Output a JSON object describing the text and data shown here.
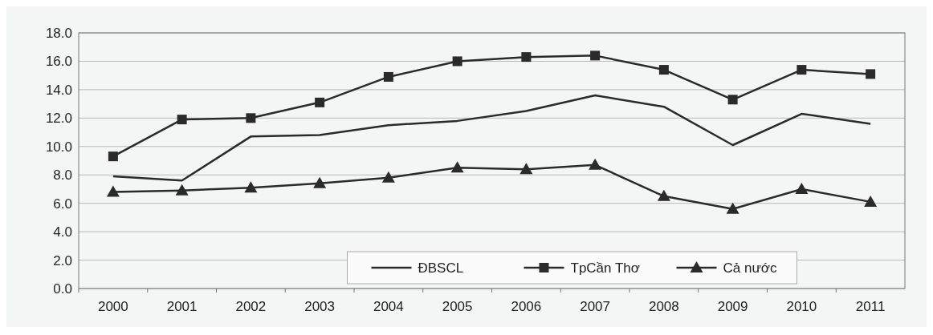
{
  "chart_data": {
    "type": "line",
    "categories": [
      "2000",
      "2001",
      "2002",
      "2003",
      "2004",
      "2005",
      "2006",
      "2007",
      "2008",
      "2009",
      "2010",
      "2011"
    ],
    "series": [
      {
        "name": "ĐBSCL",
        "color": "#2a2a2a",
        "marker": "none",
        "values": [
          7.9,
          7.6,
          10.7,
          10.8,
          11.5,
          11.8,
          12.5,
          13.6,
          12.8,
          10.1,
          12.3,
          11.6
        ]
      },
      {
        "name": "TpCần Thơ",
        "color": "#2a2a2a",
        "marker": "square",
        "values": [
          9.3,
          11.9,
          12.0,
          13.1,
          14.9,
          16.0,
          16.3,
          16.4,
          15.4,
          13.3,
          15.4,
          15.1
        ]
      },
      {
        "name": "Cả nước",
        "color": "#2a2a2a",
        "marker": "triangle",
        "values": [
          6.8,
          6.9,
          7.1,
          7.4,
          7.8,
          8.5,
          8.4,
          8.7,
          6.5,
          5.6,
          7.0,
          6.1
        ]
      }
    ],
    "ylim": [
      0,
      18
    ],
    "yticks": [
      {
        "value": 0,
        "label": "0.0"
      },
      {
        "value": 2,
        "label": "2.0"
      },
      {
        "value": 4,
        "label": "4.0"
      },
      {
        "value": 6,
        "label": "6.0"
      },
      {
        "value": 8,
        "label": "8.0"
      },
      {
        "value": 10,
        "label": "10.0"
      },
      {
        "value": 12,
        "label": "12.0"
      },
      {
        "value": 14,
        "label": "14.0"
      },
      {
        "value": 16,
        "label": "16.0"
      },
      {
        "value": 18,
        "label": "18.0"
      }
    ],
    "grid": "y",
    "legend": "bottom",
    "line_style": "solid"
  }
}
